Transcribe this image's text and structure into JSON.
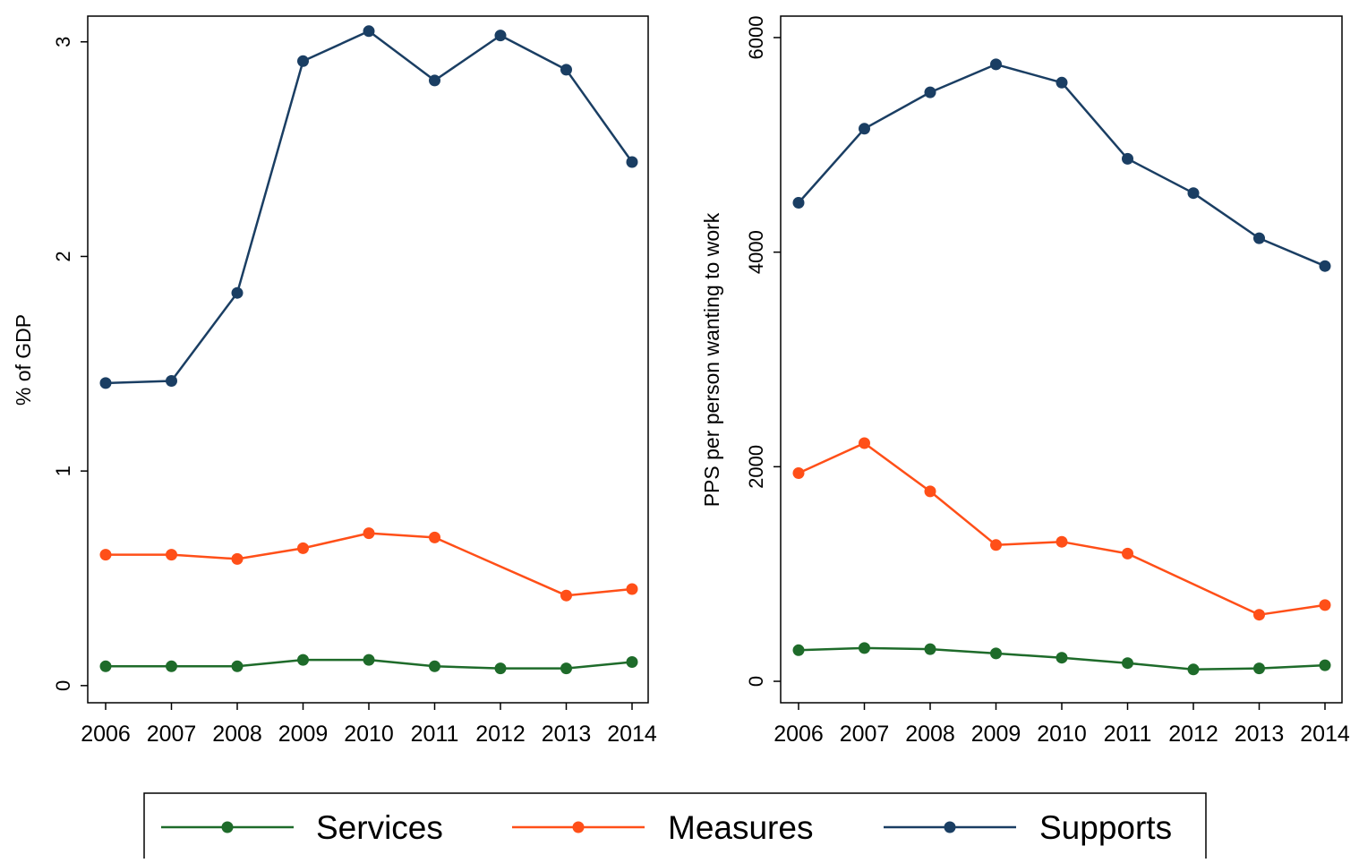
{
  "chart_data": [
    {
      "type": "line",
      "categories": [
        "2006",
        "2007",
        "2008",
        "2009",
        "2010",
        "2011",
        "2012",
        "2013",
        "2014"
      ],
      "ylabel": "% of GDP",
      "ylim": [
        -0.08,
        3.12
      ],
      "yticks": [
        "0",
        "1",
        "2",
        "3"
      ],
      "grid": false,
      "series": [
        {
          "name": "Services",
          "values": [
            0.09,
            0.09,
            0.09,
            0.12,
            0.12,
            0.09,
            0.08,
            0.08,
            0.11
          ]
        },
        {
          "name": "Measures",
          "values": [
            0.61,
            0.61,
            0.59,
            0.64,
            0.71,
            0.69,
            null,
            0.42,
            0.45
          ]
        },
        {
          "name": "Supports",
          "values": [
            1.41,
            1.42,
            1.83,
            2.91,
            3.05,
            2.82,
            3.03,
            2.87,
            2.44
          ]
        }
      ]
    },
    {
      "type": "line",
      "categories": [
        "2006",
        "2007",
        "2008",
        "2009",
        "2010",
        "2011",
        "2012",
        "2013",
        "2014"
      ],
      "ylabel": "PPS per person wanting to work",
      "ylim": [
        -200,
        6200
      ],
      "yticks": [
        "0",
        "2000",
        "4000",
        "6000"
      ],
      "grid": false,
      "series": [
        {
          "name": "Services",
          "values": [
            290,
            310,
            300,
            260,
            220,
            170,
            110,
            120,
            150
          ]
        },
        {
          "name": "Measures",
          "values": [
            1940,
            2220,
            1770,
            1270,
            1300,
            1190,
            null,
            620,
            710
          ]
        },
        {
          "name": "Supports",
          "values": [
            4460,
            5150,
            5490,
            5750,
            5580,
            4870,
            4550,
            4130,
            3870
          ]
        }
      ]
    }
  ],
  "legend": {
    "placement": "bottom",
    "entries": [
      "Services",
      "Measures",
      "Supports"
    ]
  },
  "colors": {
    "Services": "#1e6b2a",
    "Measures": "#ff4f18",
    "Supports": "#1a3e63",
    "axis": "#000000"
  }
}
